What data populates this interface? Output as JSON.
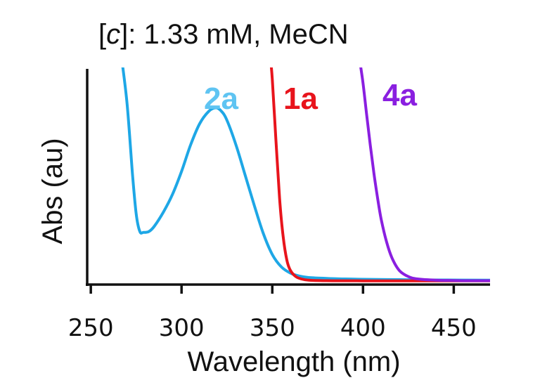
{
  "chart_data": {
    "type": "line",
    "title": {
      "bracket_open": "[",
      "c": "c",
      "rest": "]: 1.33 mM, MeCN"
    },
    "xlabel": "Wavelength (nm)",
    "ylabel": "Abs (au)",
    "xlim": [
      248,
      470
    ],
    "ylim": [
      0,
      1.2
    ],
    "grid": false,
    "y_ticks_shown": false,
    "xticks": [
      250,
      300,
      350,
      400,
      450
    ],
    "series": [
      {
        "name": "2a",
        "color": "#1ea7e6",
        "label_color": "#5fc4f2",
        "x": [
          267,
          270,
          273,
          275,
          277,
          279,
          282,
          285,
          290,
          295,
          300,
          305,
          310,
          315,
          319,
          322,
          325,
          330,
          335,
          340,
          345,
          350,
          355,
          360,
          365,
          370,
          380,
          390,
          400,
          420,
          440,
          470
        ],
        "y": [
          1.26,
          1.0,
          0.6,
          0.38,
          0.28,
          0.275,
          0.28,
          0.31,
          0.39,
          0.49,
          0.62,
          0.77,
          0.89,
          0.96,
          0.98,
          0.96,
          0.91,
          0.77,
          0.6,
          0.43,
          0.27,
          0.15,
          0.08,
          0.045,
          0.028,
          0.02,
          0.015,
          0.012,
          0.01,
          0.008,
          0.006,
          0.005
        ]
      },
      {
        "name": "1a",
        "color": "#e8141c",
        "label_color": "#e8141c",
        "x": [
          349,
          350,
          352,
          354,
          356,
          358,
          360,
          363,
          366,
          370,
          380,
          400,
          470
        ],
        "y": [
          1.26,
          1.14,
          0.8,
          0.47,
          0.25,
          0.12,
          0.06,
          0.025,
          0.012,
          0.005,
          0.002,
          0.001,
          0.001
        ]
      },
      {
        "name": "4a",
        "color": "#8a1fe0",
        "label_color": "#8a1fe0",
        "x": [
          398,
          400,
          402,
          404,
          406,
          408,
          410,
          413,
          416,
          420,
          425,
          430,
          440,
          450,
          460,
          470
        ],
        "y": [
          1.26,
          1.12,
          0.94,
          0.77,
          0.61,
          0.47,
          0.35,
          0.22,
          0.13,
          0.06,
          0.025,
          0.012,
          0.005,
          0.003,
          0.002,
          0.002
        ]
      }
    ]
  }
}
